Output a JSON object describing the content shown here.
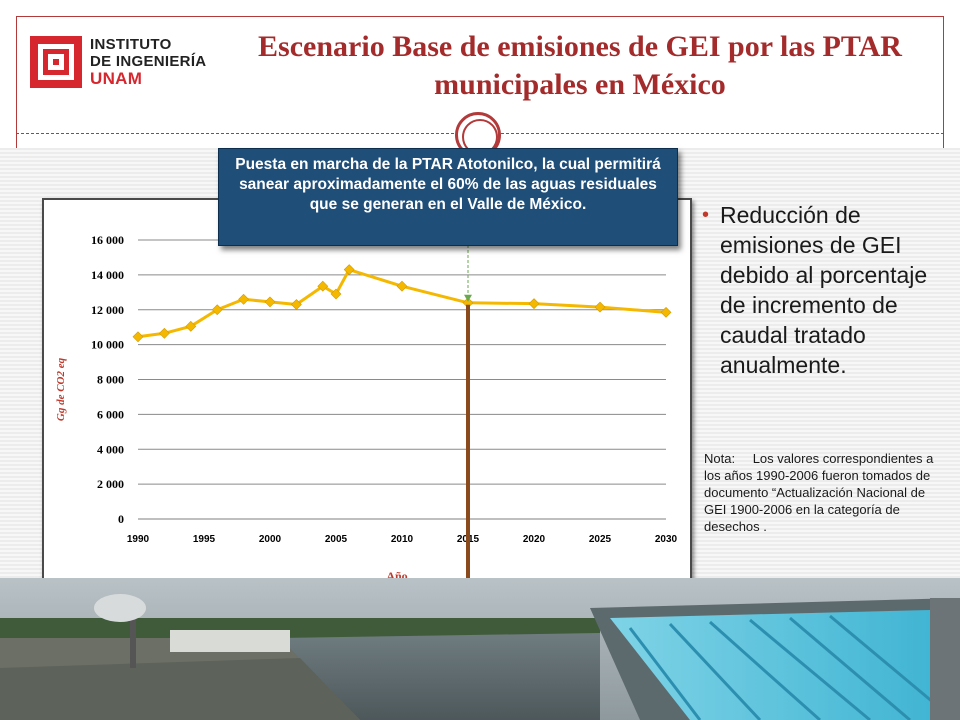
{
  "header": {
    "logo_lines": [
      "INSTITUTO",
      "DE INGENIERÍA",
      "UNAM"
    ],
    "title": "Escenario Base de emisiones de GEI por las PTAR municipales en México"
  },
  "callout": {
    "text": "Puesta en marcha de la PTAR Atotonilco, la cual permitirá sanear aproximadamente el 60% de las aguas residuales que se generan en el Valle de México."
  },
  "bullet": {
    "text": "Reducción de emisiones de GEI debido al porcentaje de incremento de caudal tratado anualmente."
  },
  "note": {
    "label": "Nota:",
    "text": "Los valores correspondientes a los años 1990-2006 fueron tomados de documento “Actualización Nacional de GEI 1900-2006 en la categoría de desechos ."
  },
  "chart_data": {
    "type": "line",
    "title": "",
    "xlabel": "Año",
    "ylabel": "Gg de CO2 eq",
    "xlim": [
      1990,
      2030
    ],
    "ylim": [
      0,
      16000
    ],
    "x_ticks": [
      1990,
      1995,
      2000,
      2005,
      2010,
      2015,
      2020,
      2025,
      2030
    ],
    "x_tick_labels": [
      "1990",
      "1995",
      "2000",
      "2005",
      "2010",
      "2015",
      "2020",
      "2025",
      "2030"
    ],
    "y_ticks": [
      0,
      2000,
      4000,
      6000,
      8000,
      10000,
      12000,
      14000,
      16000
    ],
    "y_tick_labels": [
      "0",
      "2 000",
      "4 000",
      "6 000",
      "8 000",
      "10 000",
      "12 000",
      "14 000",
      "16 000"
    ],
    "grid": true,
    "series": [
      {
        "color": "#f5b800",
        "x": [
          1990,
          1992,
          1994,
          1996,
          1998,
          2000,
          2002,
          2004,
          2005,
          2006,
          2010,
          2015,
          2020,
          2025,
          2030
        ],
        "y": [
          10450,
          10650,
          11050,
          12000,
          12600,
          12450,
          12300,
          13350,
          12900,
          14300,
          13350,
          12400,
          12350,
          12150,
          11850
        ]
      }
    ],
    "marker_line": {
      "x": 2015,
      "color": "#8b4a1c"
    },
    "colors": {
      "line": "#f5b800",
      "marker_line": "#8b4a1c",
      "axis_text": "#000000",
      "ylabel": "#c0392b",
      "xlabel": "#c0392b"
    }
  }
}
